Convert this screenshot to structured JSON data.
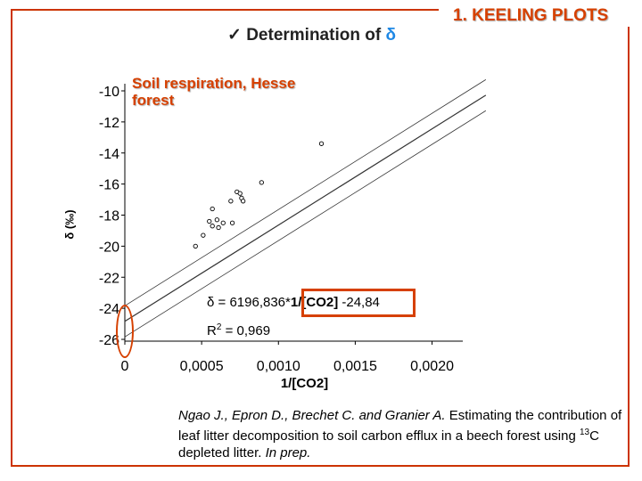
{
  "slide": {
    "section_tag": "1. KEELING PLOTS",
    "heading_prefix": "✓ Determination of ",
    "heading_symbol": "δ",
    "caption": "Soil respiration, Hesse forest",
    "reference": {
      "authors": "Ngao J., Epron D., Brechet C. and Granier A.",
      "title_before_sup": " Estimating the contribution of leaf litter decomposition to soil carbon efflux in a beech forest using ",
      "sup": "13",
      "title_after_sup": "C depleted litter.",
      "status": "In prep."
    }
  },
  "colors": {
    "accent": "#d64000",
    "delta_blue": "#1e88e5",
    "frame": "#cc3300"
  },
  "chart_data": {
    "type": "scatter",
    "title": "",
    "xlabel": "1/[CO2]",
    "ylabel": "δ (‰)",
    "xlim": [
      0,
      0.0022
    ],
    "ylim": [
      -26,
      -10
    ],
    "x_ticks": [
      "0",
      "0,0005",
      "0,0010",
      "0,0015",
      "0,0020"
    ],
    "y_ticks": [
      "-10",
      "-12",
      "-14",
      "-16",
      "-18",
      "-20",
      "-22",
      "-24",
      "-26"
    ],
    "y_tick_values": [
      -10,
      -12,
      -14,
      -16,
      -18,
      -20,
      -22,
      -24,
      -26
    ],
    "grid": false,
    "equation_prefix": "δ = 6196,836*",
    "equation_highlight": "1/[CO2]",
    "equation_suffix": " -24,84",
    "r2_label": "R",
    "r2_exp": "2",
    "r2_value": " = 0,969",
    "regression": {
      "slope": 6196.836,
      "intercept": -24.84
    },
    "confidence_offsets": [
      1.0,
      -1.0
    ],
    "points": [
      {
        "x": 0.00046,
        "y": -20.0
      },
      {
        "x": 0.00051,
        "y": -19.3
      },
      {
        "x": 0.00055,
        "y": -18.4
      },
      {
        "x": 0.00057,
        "y": -17.6
      },
      {
        "x": 0.00057,
        "y": -18.7
      },
      {
        "x": 0.0006,
        "y": -18.3
      },
      {
        "x": 0.00061,
        "y": -18.8
      },
      {
        "x": 0.00064,
        "y": -18.5
      },
      {
        "x": 0.00069,
        "y": -17.1
      },
      {
        "x": 0.0007,
        "y": -18.5
      },
      {
        "x": 0.00073,
        "y": -16.5
      },
      {
        "x": 0.00075,
        "y": -16.6
      },
      {
        "x": 0.00076,
        "y": -16.9
      },
      {
        "x": 0.00077,
        "y": -17.1
      },
      {
        "x": 0.00089,
        "y": -15.9
      },
      {
        "x": 0.00128,
        "y": -13.4
      }
    ]
  }
}
